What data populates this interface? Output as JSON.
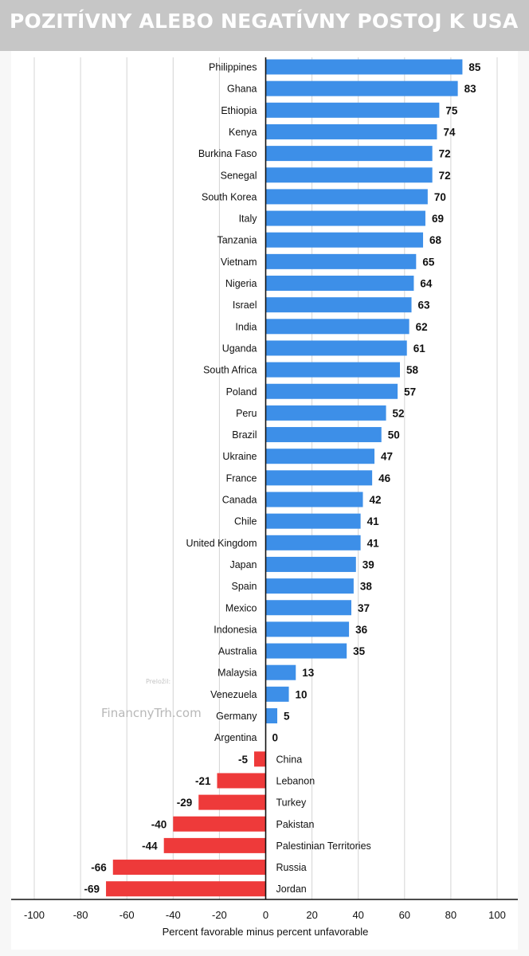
{
  "title": "POZITÍVNY ALEBO NEGATÍVNY POSTOJ K USA",
  "credit": "Preložil:",
  "watermark": "FinancnyTrh.com",
  "colors": {
    "positive": "#3d8fe8",
    "negative": "#ee3a3a",
    "grid": "#d4d4d4",
    "axis": "#111111"
  },
  "chart_data": {
    "type": "bar",
    "orientation": "horizontal",
    "title": "",
    "xlabel": "Percent favorable minus percent unfavorable",
    "ylabel": "",
    "xlim": [
      -100,
      100
    ],
    "xticks": [
      -100,
      -80,
      -60,
      -40,
      -20,
      0,
      20,
      40,
      60,
      80,
      100
    ],
    "grid": "vertical",
    "categories": [
      "Philippines",
      "Ghana",
      "Ethiopia",
      "Kenya",
      "Burkina Faso",
      "Senegal",
      "South Korea",
      "Italy",
      "Tanzania",
      "Vietnam",
      "Nigeria",
      "Israel",
      "India",
      "Uganda",
      "South Africa",
      "Poland",
      "Peru",
      "Brazil",
      "Ukraine",
      "France",
      "Canada",
      "Chile",
      "United Kingdom",
      "Japan",
      "Spain",
      "Mexico",
      "Indonesia",
      "Australia",
      "Malaysia",
      "Venezuela",
      "Germany",
      "Argentina",
      "China",
      "Lebanon",
      "Turkey",
      "Pakistan",
      "Palestinian Territories",
      "Russia",
      "Jordan"
    ],
    "values": [
      85,
      83,
      75,
      74,
      72,
      72,
      70,
      69,
      68,
      65,
      64,
      63,
      62,
      61,
      58,
      57,
      52,
      50,
      47,
      46,
      42,
      41,
      41,
      39,
      38,
      37,
      36,
      35,
      13,
      10,
      5,
      0,
      -5,
      -21,
      -29,
      -40,
      -44,
      -66,
      -69
    ]
  }
}
